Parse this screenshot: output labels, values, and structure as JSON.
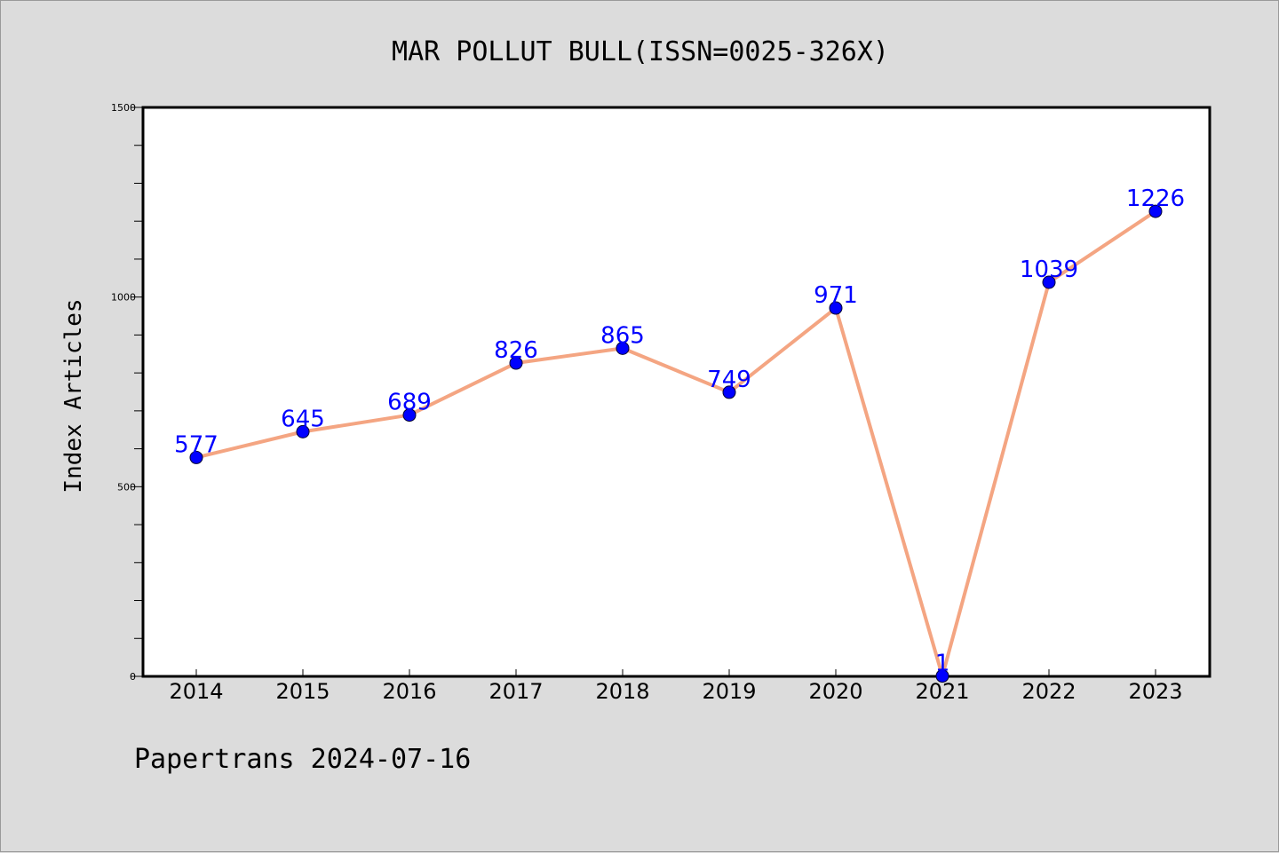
{
  "chart_data": {
    "type": "line",
    "title": "MAR POLLUT BULL(ISSN=0025-326X)",
    "xlabel": "",
    "ylabel": "Index Articles",
    "categories": [
      "2014",
      "2015",
      "2016",
      "2017",
      "2018",
      "2019",
      "2020",
      "2021",
      "2022",
      "2023"
    ],
    "series": [
      {
        "values": [
          577,
          645,
          689,
          826,
          865,
          749,
          971,
          1,
          1039,
          1226
        ],
        "line_color": "#f4a582",
        "marker_color": "#0000ff"
      }
    ],
    "data_labels": [
      "577",
      "645",
      "689",
      "826",
      "865",
      "749",
      "971",
      "1",
      "1039",
      "1226"
    ],
    "ylim": [
      0,
      1500
    ],
    "yticks": [
      "0",
      "500",
      "1000",
      "1500"
    ],
    "grid": false,
    "label_color": "#0000ff"
  },
  "footer": {
    "text": "Papertrans 2024-07-16"
  }
}
